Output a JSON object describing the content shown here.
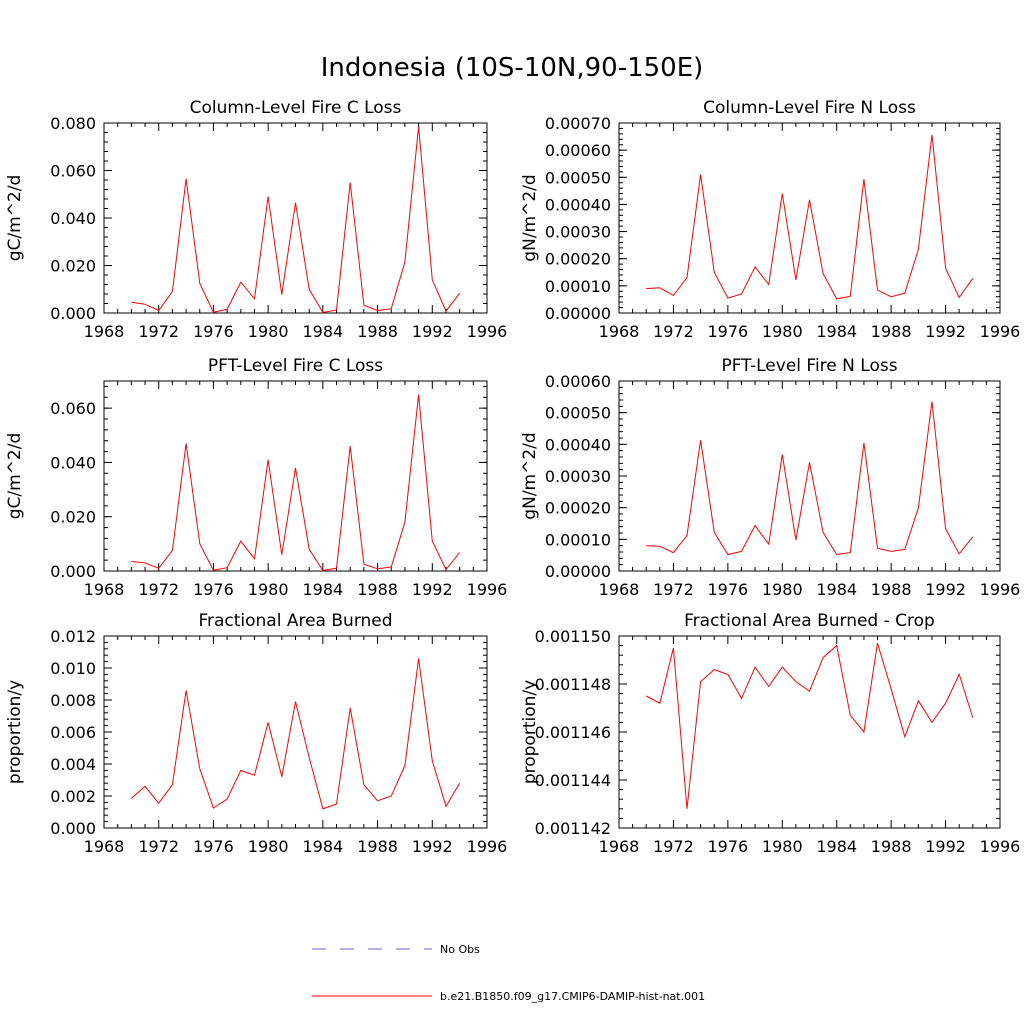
{
  "title": "Indonesia (10S-10N,90-150E)",
  "colors": {
    "model": "#ff0000",
    "obs": "#6666cc",
    "axes": "#000000"
  },
  "legend": {
    "obs_label": "No Obs",
    "model_label": "b.e21.B1850.f09_g17.CMIP6-DAMIP-hist-nat.001"
  },
  "chart_data": [
    {
      "type": "line",
      "title": "Column-Level Fire C Loss",
      "ylabel": "gC/m^2/d",
      "xlim": [
        1968,
        1996
      ],
      "ylim": [
        0,
        0.08
      ],
      "xticks": [
        "1968",
        "1972",
        "1976",
        "1980",
        "1984",
        "1988",
        "1992",
        "1996"
      ],
      "yticks": [
        "0.000",
        "0.020",
        "0.040",
        "0.060",
        "0.080"
      ],
      "x": [
        1970,
        1971,
        1972,
        1973,
        1974,
        1975,
        1976,
        1977,
        1978,
        1979,
        1980,
        1981,
        1982,
        1983,
        1984,
        1985,
        1986,
        1987,
        1988,
        1989,
        1990,
        1991,
        1992,
        1993,
        1994
      ],
      "values": [
        0.0045,
        0.0037,
        0.001,
        0.009,
        0.0565,
        0.0125,
        0.0003,
        0.0015,
        0.013,
        0.006,
        0.049,
        0.0078,
        0.0465,
        0.01,
        0.0002,
        0.0012,
        0.055,
        0.0033,
        0.001,
        0.0018,
        0.0215,
        0.0785,
        0.014,
        0.0008,
        0.0083
      ]
    },
    {
      "type": "line",
      "title": "Column-Level Fire N Loss",
      "ylabel": "gN/m^2/d",
      "xlim": [
        1968,
        1996
      ],
      "ylim": [
        0,
        0.0007
      ],
      "xticks": [
        "1968",
        "1972",
        "1976",
        "1980",
        "1984",
        "1988",
        "1992",
        "1996"
      ],
      "yticks": [
        "0.00000",
        "0.00010",
        "0.00020",
        "0.00030",
        "0.00040",
        "0.00050",
        "0.00060",
        "0.00070"
      ],
      "x": [
        1970,
        1971,
        1972,
        1973,
        1974,
        1975,
        1976,
        1977,
        1978,
        1979,
        1980,
        1981,
        1982,
        1983,
        1984,
        1985,
        1986,
        1987,
        1988,
        1989,
        1990,
        1991,
        1992,
        1993,
        1994
      ],
      "values": [
        9e-05,
        9.3e-05,
        6.5e-05,
        0.00013,
        0.00051,
        0.00015,
        5.5e-05,
        7e-05,
        0.00017,
        0.000105,
        0.00044,
        0.000122,
        0.000417,
        0.000145,
        5.2e-05,
        6.2e-05,
        0.000493,
        8.5e-05,
        6e-05,
        7.3e-05,
        0.000235,
        0.000657,
        0.000165,
        5.7e-05,
        0.000128
      ]
    },
    {
      "type": "line",
      "title": "PFT-Level Fire C Loss",
      "ylabel": "gC/m^2/d",
      "xlim": [
        1968,
        1996
      ],
      "ylim": [
        0,
        0.07
      ],
      "xticks": [
        "1968",
        "1972",
        "1976",
        "1980",
        "1984",
        "1988",
        "1992",
        "1996"
      ],
      "yticks": [
        "0.000",
        "0.020",
        "0.040",
        "0.060"
      ],
      "x": [
        1970,
        1971,
        1972,
        1973,
        1974,
        1975,
        1976,
        1977,
        1978,
        1979,
        1980,
        1981,
        1982,
        1983,
        1984,
        1985,
        1986,
        1987,
        1988,
        1989,
        1990,
        1991,
        1992,
        1993,
        1994
      ],
      "values": [
        0.0035,
        0.003,
        0.001,
        0.0075,
        0.047,
        0.01,
        0.0003,
        0.0012,
        0.011,
        0.0045,
        0.041,
        0.006,
        0.038,
        0.008,
        0.0002,
        0.001,
        0.046,
        0.0025,
        0.0008,
        0.0015,
        0.018,
        0.065,
        0.011,
        0.0005,
        0.0068
      ]
    },
    {
      "type": "line",
      "title": "PFT-Level Fire N Loss",
      "ylabel": "gN/m^2/d",
      "xlim": [
        1968,
        1996
      ],
      "ylim": [
        0,
        0.0006
      ],
      "xticks": [
        "1968",
        "1972",
        "1976",
        "1980",
        "1984",
        "1988",
        "1992",
        "1996"
      ],
      "yticks": [
        "0.00000",
        "0.00010",
        "0.00020",
        "0.00030",
        "0.00040",
        "0.00050",
        "0.00060"
      ],
      "x": [
        1970,
        1971,
        1972,
        1973,
        1974,
        1975,
        1976,
        1977,
        1978,
        1979,
        1980,
        1981,
        1982,
        1983,
        1984,
        1985,
        1986,
        1987,
        1988,
        1989,
        1990,
        1991,
        1992,
        1993,
        1994
      ],
      "values": [
        8e-05,
        7.8e-05,
        5.8e-05,
        0.000112,
        0.000413,
        0.000122,
        5.2e-05,
        6.2e-05,
        0.000143,
        8.5e-05,
        0.000368,
        9.8e-05,
        0.000343,
        0.000122,
        5.2e-05,
        5.8e-05,
        0.000405,
        7.2e-05,
        6.2e-05,
        6.8e-05,
        0.0002,
        0.000535,
        0.000133,
        5.4e-05,
        0.000108
      ]
    },
    {
      "type": "line",
      "title": "Fractional Area Burned",
      "ylabel": "proportion/y",
      "xlim": [
        1968,
        1996
      ],
      "ylim": [
        0,
        0.012
      ],
      "xticks": [
        "1968",
        "1972",
        "1976",
        "1980",
        "1984",
        "1988",
        "1992",
        "1996"
      ],
      "yticks": [
        "0.000",
        "0.002",
        "0.004",
        "0.006",
        "0.008",
        "0.010",
        "0.012"
      ],
      "x": [
        1970,
        1971,
        1972,
        1973,
        1974,
        1975,
        1976,
        1977,
        1978,
        1979,
        1980,
        1981,
        1982,
        1983,
        1984,
        1985,
        1986,
        1987,
        1988,
        1989,
        1990,
        1991,
        1992,
        1993,
        1994
      ],
      "values": [
        0.00185,
        0.0026,
        0.00155,
        0.0027,
        0.0086,
        0.0037,
        0.00125,
        0.0018,
        0.0036,
        0.0033,
        0.0066,
        0.0032,
        0.0079,
        0.0044,
        0.0012,
        0.0015,
        0.0075,
        0.0027,
        0.0017,
        0.002,
        0.0039,
        0.0106,
        0.0042,
        0.00135,
        0.0028
      ]
    },
    {
      "type": "line",
      "title": "Fractional Area Burned - Crop",
      "ylabel": "proportion/y",
      "xlim": [
        1968,
        1996
      ],
      "ylim": [
        0.001142,
        0.00115
      ],
      "xticks": [
        "1968",
        "1972",
        "1976",
        "1980",
        "1984",
        "1988",
        "1992",
        "1996"
      ],
      "yticks": [
        "0.001142",
        "0.001144",
        "0.001146",
        "0.001148",
        "0.001150"
      ],
      "x": [
        1970,
        1971,
        1972,
        1973,
        1974,
        1975,
        1976,
        1977,
        1978,
        1979,
        1980,
        1981,
        1982,
        1983,
        1984,
        1985,
        1986,
        1987,
        1988,
        1989,
        1990,
        1991,
        1992,
        1993,
        1994
      ],
      "values": [
        0.0011475,
        0.0011472,
        0.0011495,
        0.0011428,
        0.0011481,
        0.0011486,
        0.0011484,
        0.0011474,
        0.0011487,
        0.0011479,
        0.0011487,
        0.0011481,
        0.0011477,
        0.0011491,
        0.0011496,
        0.0011467,
        0.001146,
        0.0011497,
        0.0011478,
        0.0011458,
        0.0011473,
        0.0011464,
        0.0011472,
        0.0011484,
        0.0011466
      ]
    }
  ]
}
